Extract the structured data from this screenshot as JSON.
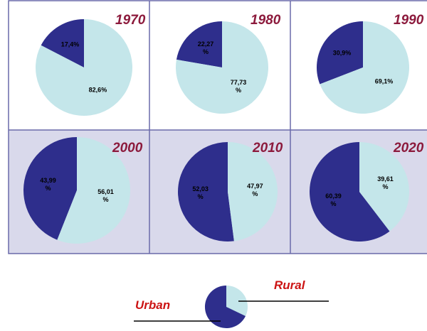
{
  "chart_data": [
    {
      "type": "pie",
      "title": "1970",
      "categories": [
        "Urban",
        "Rural"
      ],
      "values": [
        17.4,
        82.6
      ],
      "value_labels": [
        "17,4%",
        "82,6%"
      ],
      "colors": [
        "#2e2e8c",
        "#c4e6ea"
      ]
    },
    {
      "type": "pie",
      "title": "1980",
      "categories": [
        "Urban",
        "Rural"
      ],
      "values": [
        22.27,
        77.73
      ],
      "value_labels": [
        "22,27\n%",
        "77,73\n%"
      ],
      "colors": [
        "#2e2e8c",
        "#c4e6ea"
      ]
    },
    {
      "type": "pie",
      "title": "1990",
      "categories": [
        "Urban",
        "Rural"
      ],
      "values": [
        30.9,
        69.1
      ],
      "value_labels": [
        "30,9%",
        "69,1%"
      ],
      "colors": [
        "#2e2e8c",
        "#c4e6ea"
      ]
    },
    {
      "type": "pie",
      "title": "2000",
      "categories": [
        "Urban",
        "Rural"
      ],
      "values": [
        43.99,
        56.01
      ],
      "value_labels": [
        "43,99\n%",
        "56,01\n%"
      ],
      "colors": [
        "#2e2e8c",
        "#c4e6ea"
      ]
    },
    {
      "type": "pie",
      "title": "2010",
      "categories": [
        "Urban",
        "Rural"
      ],
      "values": [
        52.03,
        47.97
      ],
      "value_labels": [
        "52,03\n%",
        "47,97\n%"
      ],
      "colors": [
        "#2e2e8c",
        "#c4e6ea"
      ]
    },
    {
      "type": "pie",
      "title": "2020",
      "categories": [
        "Urban",
        "Rural"
      ],
      "values": [
        60.39,
        39.61
      ],
      "value_labels": [
        "60,39\n%",
        "39,61\n%"
      ],
      "colors": [
        "#2e2e8c",
        "#c4e6ea"
      ]
    }
  ]
}
